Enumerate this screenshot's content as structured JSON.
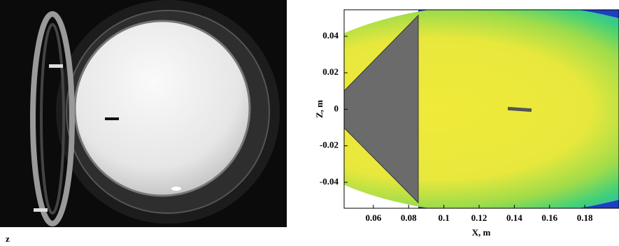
{
  "chart_data": {
    "type": "contour",
    "xlabel": "X, m",
    "ylabel": "Z, m",
    "xlim": [
      0.0434,
      0.1994
    ],
    "xticks": [
      0.06,
      0.08,
      0.1,
      0.12,
      0.14,
      0.16,
      0.18
    ],
    "ylim": [
      -0.0542,
      0.0545
    ],
    "yticks": [
      0.04,
      0.02,
      0,
      -0.02,
      -0.04
    ]
  },
  "photo_label": "z"
}
